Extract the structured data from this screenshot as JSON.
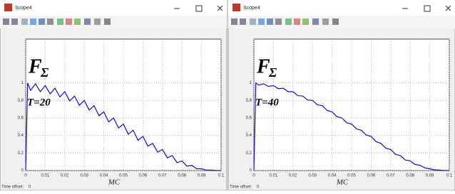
{
  "windows": [
    {
      "title": "Scope4",
      "time_offset_label": "Time offset:",
      "time_offset": "0"
    },
    {
      "title": "Scope4",
      "time_offset_label": "Time offset:",
      "time_offset": "0"
    }
  ],
  "chart_data": [
    {
      "type": "line",
      "title_main": "F",
      "title_sub": "Σ",
      "annotation": "T=20",
      "xlabel": "MC",
      "color": "#1010c0",
      "grid": true,
      "xlim": [
        0,
        0.1
      ],
      "ylim": [
        0,
        1.5
      ],
      "xticks": [
        0,
        0.01,
        0.02,
        0.03,
        0.04,
        0.05,
        0.06,
        0.07,
        0.08,
        0.09,
        0.1
      ],
      "yticks": [
        0,
        0.2,
        0.4,
        0.6,
        0.8,
        1
      ],
      "x": [
        0,
        0.001,
        0.0025,
        0.005,
        0.0075,
        0.01,
        0.0125,
        0.015,
        0.0175,
        0.02,
        0.0225,
        0.025,
        0.0275,
        0.03,
        0.0325,
        0.035,
        0.0375,
        0.04,
        0.0425,
        0.045,
        0.0475,
        0.05,
        0.0525,
        0.055,
        0.0575,
        0.06,
        0.0625,
        0.065,
        0.0675,
        0.07,
        0.0725,
        0.075,
        0.0775,
        0.08,
        0.0825,
        0.085,
        0.0875,
        0.09,
        0.0925,
        0.095,
        0.0975,
        0.1
      ],
      "values": [
        0,
        1,
        0.915,
        0.99,
        0.9,
        0.97,
        0.875,
        0.94,
        0.84,
        0.9,
        0.795,
        0.85,
        0.745,
        0.8,
        0.69,
        0.74,
        0.625,
        0.67,
        0.555,
        0.6,
        0.485,
        0.53,
        0.415,
        0.46,
        0.345,
        0.39,
        0.28,
        0.31,
        0.21,
        0.24,
        0.145,
        0.17,
        0.09,
        0.11,
        0.05,
        0.06,
        0.02,
        0.02,
        0.005,
        0.005,
        0.001,
        0
      ]
    },
    {
      "type": "line",
      "title_main": "F",
      "title_sub": "Σ",
      "annotation": "T=40",
      "xlabel": "MC",
      "color": "#1010c0",
      "grid": true,
      "xlim": [
        0,
        0.1
      ],
      "ylim": [
        0,
        1.5
      ],
      "xticks": [
        0,
        0.01,
        0.02,
        0.03,
        0.04,
        0.05,
        0.06,
        0.07,
        0.08,
        0.09,
        0.1
      ],
      "yticks": [
        0,
        0.2,
        0.4,
        0.6,
        0.8,
        1
      ],
      "x": [
        0,
        0.001,
        0.0025,
        0.005,
        0.0075,
        0.01,
        0.0125,
        0.015,
        0.0175,
        0.02,
        0.0225,
        0.025,
        0.0275,
        0.03,
        0.0325,
        0.035,
        0.0375,
        0.04,
        0.0425,
        0.045,
        0.0475,
        0.05,
        0.0525,
        0.055,
        0.0575,
        0.06,
        0.0625,
        0.065,
        0.0675,
        0.07,
        0.0725,
        0.075,
        0.0775,
        0.08,
        0.0825,
        0.085,
        0.0875,
        0.09,
        0.0925,
        0.095,
        0.0975,
        0.1
      ],
      "values": [
        0,
        1,
        0.975,
        0.99,
        0.96,
        0.97,
        0.935,
        0.94,
        0.9,
        0.9,
        0.855,
        0.85,
        0.805,
        0.8,
        0.75,
        0.74,
        0.685,
        0.67,
        0.615,
        0.6,
        0.545,
        0.53,
        0.475,
        0.46,
        0.405,
        0.39,
        0.33,
        0.31,
        0.255,
        0.24,
        0.185,
        0.17,
        0.12,
        0.11,
        0.07,
        0.06,
        0.03,
        0.02,
        0.008,
        0.005,
        0.001,
        0
      ]
    }
  ]
}
